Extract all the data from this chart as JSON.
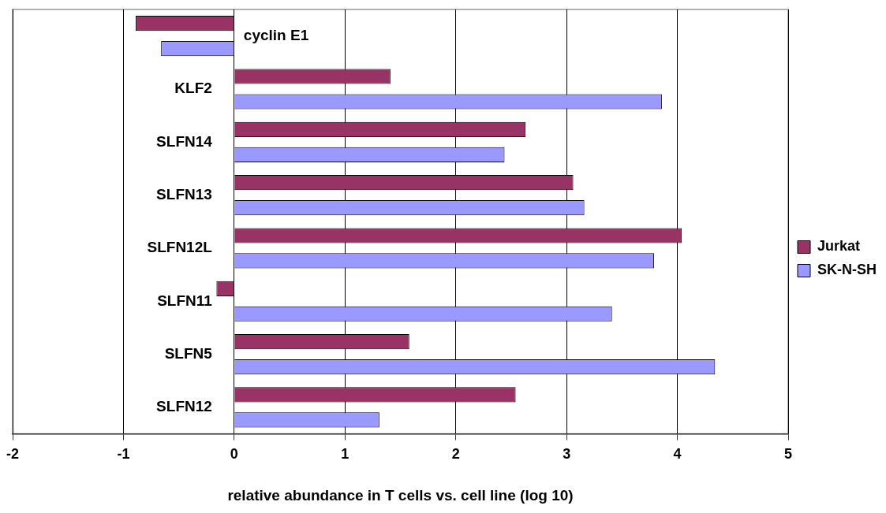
{
  "chart_data": {
    "type": "bar",
    "orientation": "horizontal",
    "xlabel": "relative abundance in T cells vs. cell line (log 10)",
    "categories": [
      "cyclin E1",
      "KLF2",
      "SLFN14",
      "SLFN13",
      "SLFN12L",
      "SLFN11",
      "SLFN5",
      "SLFN12"
    ],
    "series": [
      {
        "name": "Jurkat",
        "color": "#993366",
        "values": [
          -0.89,
          1.41,
          2.63,
          3.06,
          4.04,
          -0.16,
          1.58,
          2.54
        ]
      },
      {
        "name": "SK-N-SH",
        "color": "#9999ff",
        "values": [
          -0.66,
          3.86,
          2.44,
          3.16,
          3.79,
          3.41,
          4.34,
          1.31
        ]
      }
    ],
    "xlim": [
      -2,
      5
    ],
    "xticks": [
      -2,
      -1,
      0,
      1,
      2,
      3,
      4,
      5
    ],
    "grid": "x",
    "legend": "right"
  }
}
